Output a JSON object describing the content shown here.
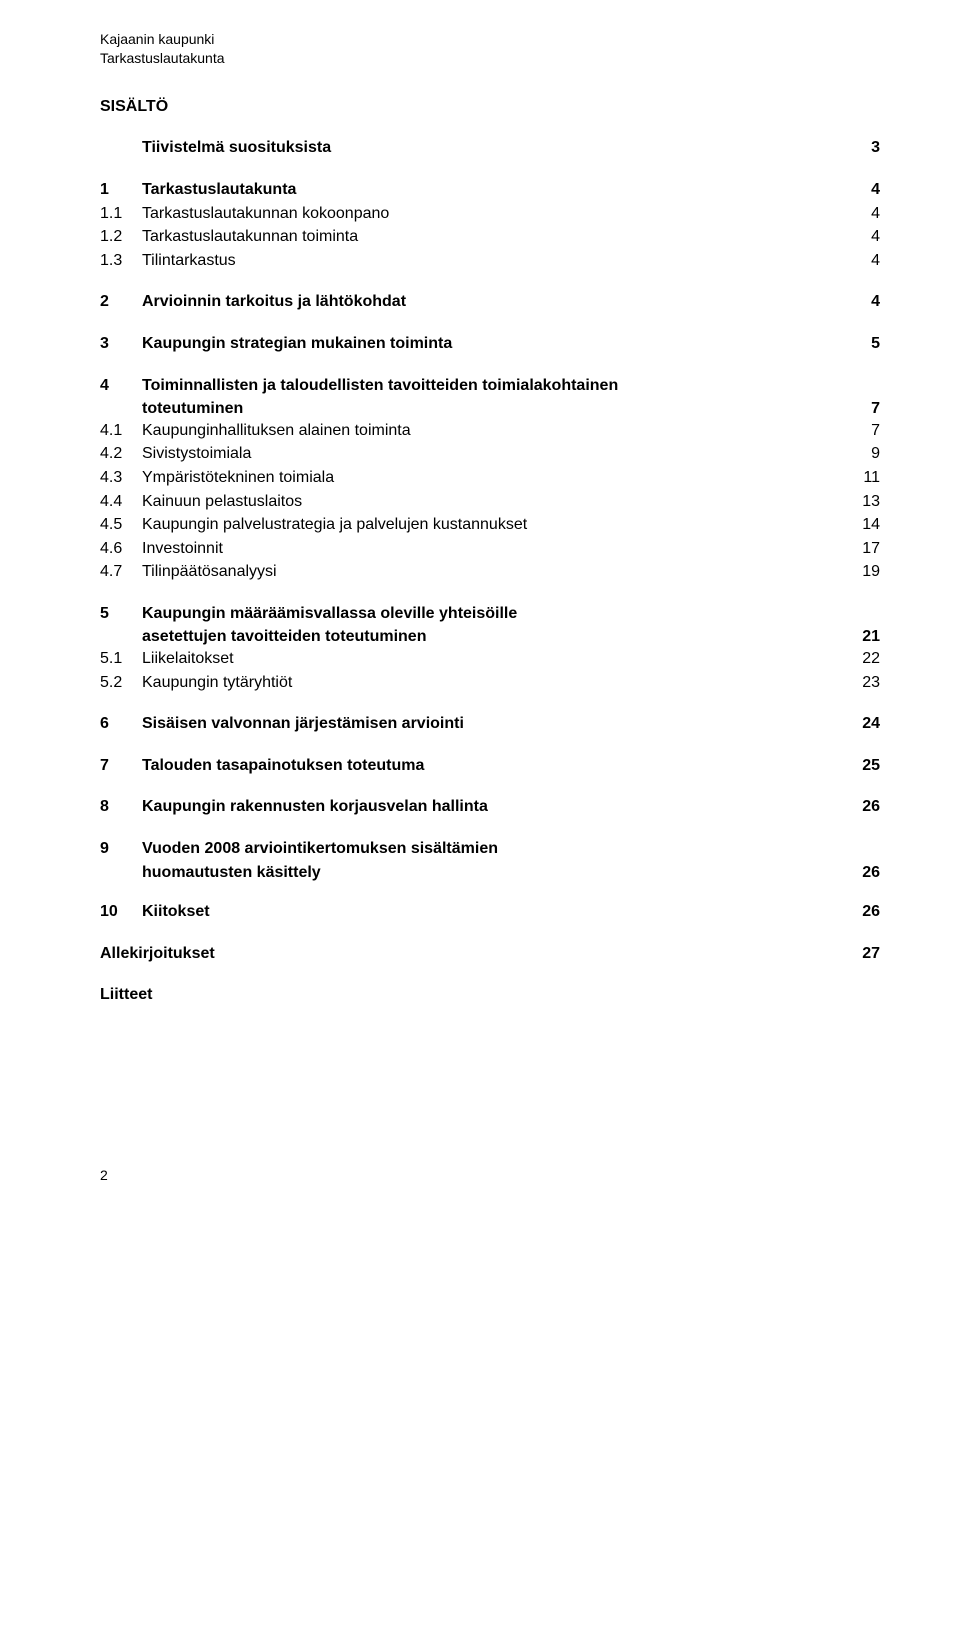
{
  "header": {
    "line1": "Kajaanin kaupunki",
    "line2": "Tarkastuslautakunta"
  },
  "title": "SISÄLTÖ",
  "summary": {
    "label": "Tiivistelmä suosituksista",
    "page": "3"
  },
  "s1": {
    "num": "1",
    "label": "Tarkastuslautakunta",
    "page": "4",
    "i1": {
      "num": "1.1",
      "label": "Tarkastuslautakunnan kokoonpano",
      "page": "4"
    },
    "i2": {
      "num": "1.2",
      "label": "Tarkastuslautakunnan toiminta",
      "page": "4"
    },
    "i3": {
      "num": "1.3",
      "label": "Tilintarkastus",
      "page": "4"
    }
  },
  "s2": {
    "num": "2",
    "label": "Arvioinnin tarkoitus ja lähtökohdat",
    "page": "4"
  },
  "s3": {
    "num": "3",
    "label": "Kaupungin strategian mukainen toiminta",
    "page": "5"
  },
  "s4": {
    "num": "4",
    "label1": "Toiminnallisten ja taloudellisten tavoitteiden toimialakohtainen",
    "label2": "toteutuminen",
    "page": "7",
    "i1": {
      "num": "4.1",
      "label": "Kaupunginhallituksen alainen toiminta",
      "page": "7"
    },
    "i2": {
      "num": "4.2",
      "label": "Sivistystoimiala",
      "page": "9"
    },
    "i3": {
      "num": "4.3",
      "label": "Ympäristötekninen toimiala",
      "page": "11"
    },
    "i4": {
      "num": "4.4",
      "label": "Kainuun pelastuslaitos",
      "page": "13"
    },
    "i5": {
      "num": "4.5",
      "label": "Kaupungin palvelustrategia ja palvelujen kustannukset",
      "page": "14"
    },
    "i6": {
      "num": "4.6",
      "label": "Investoinnit",
      "page": "17"
    },
    "i7": {
      "num": "4.7",
      "label": "Tilinpäätösanalyysi",
      "page": "19"
    }
  },
  "s5": {
    "num": "5",
    "label1": "Kaupungin määräämisvallassa oleville yhteisöille",
    "label2": "asetettujen tavoitteiden toteutuminen",
    "page": "21",
    "i1": {
      "num": "5.1",
      "label": "Liikelaitokset",
      "page": "22"
    },
    "i2": {
      "num": "5.2",
      "label": "Kaupungin tytäryhtiöt",
      "page": "23"
    }
  },
  "s6": {
    "num": "6",
    "label": "Sisäisen valvonnan järjestämisen arviointi",
    "page": "24"
  },
  "s7": {
    "num": "7",
    "label": "Talouden tasapainotuksen toteutuma",
    "page": "25"
  },
  "s8": {
    "num": "8",
    "label": "Kaupungin rakennusten korjausvelan hallinta",
    "page": "26"
  },
  "s9": {
    "num": "9",
    "label1": "Vuoden 2008 arviointikertomuksen sisältämien",
    "label2": "huomautusten käsittely",
    "page": "26"
  },
  "s10": {
    "num": "10",
    "label": "Kiitokset",
    "page": "26"
  },
  "signatures": {
    "label": "Allekirjoitukset",
    "page": "27"
  },
  "attachments": {
    "label": "Liitteet"
  },
  "footer_page": "2"
}
